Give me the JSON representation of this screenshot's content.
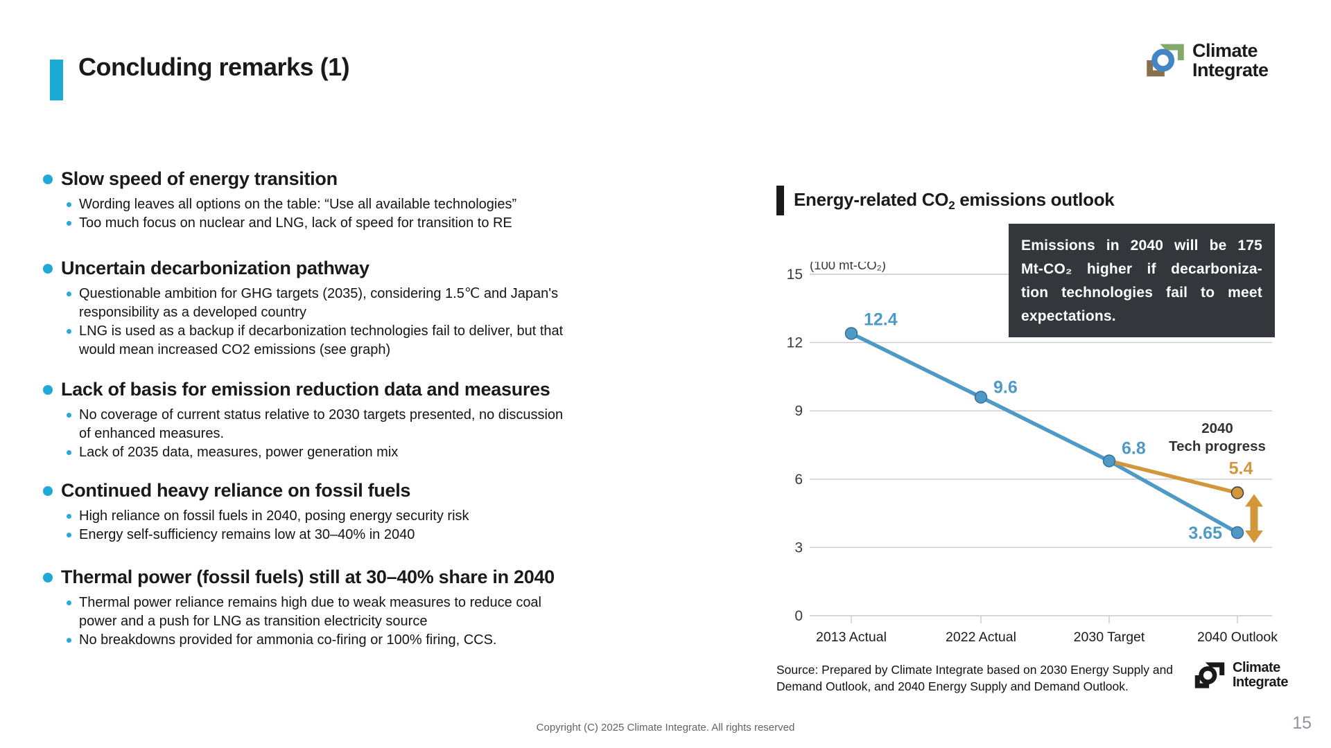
{
  "slide": {
    "title": "Concluding remarks (1)",
    "footer": "Copyright (C) 2025 Climate Integrate. All rights reserved",
    "page_number": "15",
    "accent_color": "#1fa8d8"
  },
  "logo": {
    "line1": "Climate",
    "line2": "Integrate"
  },
  "sections": [
    {
      "heading": "Slow speed of energy transition",
      "bullets": [
        "Wording leaves all options on the table: “Use all available technologies”",
        "Too much focus on nuclear and LNG, lack of speed for transition to RE"
      ]
    },
    {
      "heading": "Uncertain decarbonization pathway",
      "bullets": [
        "Questionable ambition for GHG targets (2035), considering 1.5℃ and Japan's responsibility as a developed country",
        "LNG is used as a backup if decarbonization technologies fail to deliver, but that would mean increased CO2 emissions (see graph)"
      ]
    },
    {
      "heading": "Lack of basis for emission reduction data and measures",
      "bullets": [
        "No coverage of current status relative to 2030 targets presented, no discussion of enhanced measures.",
        "Lack of 2035 data, measures, power generation mix"
      ]
    },
    {
      "heading": "Continued heavy reliance on fossil fuels",
      "bullets": [
        "High reliance on fossil fuels in 2040, posing energy security risk",
        "Energy self-sufficiency remains low at 30–40% in 2040"
      ]
    },
    {
      "heading": "Thermal power (fossil fuels) still at 30–40% share in 2040",
      "bullets": [
        "Thermal power reliance remains high due to weak measures to reduce coal power and a push for LNG as transition electricity source",
        "No breakdowns provided for ammonia co-firing or 100% firing, CCS."
      ]
    }
  ],
  "chart": {
    "header": {
      "pre": "Energy-related CO",
      "sub": "2",
      "post": " emissions outlook"
    },
    "callout_lines": [
      "Emissions in 2040 will be 175",
      "Mt-CO₂ higher if decarboniza-",
      "tion technologies fail to meet",
      "expectations."
    ],
    "source_lines": [
      "Source: Prepared by Climate Integrate based on 2030 Energy Supply and",
      "Demand Outlook, and 2040 Energy Supply and Demand Outlook."
    ]
  },
  "chart_data": {
    "type": "line",
    "title": "Energy-related CO2 emissions outlook",
    "unit_label": "(100 mt-CO₂)",
    "categories": [
      "2013 Actual",
      "2022 Actual",
      "2030 Target",
      "2040 Outlook"
    ],
    "series": [
      {
        "name": "Emissions outlook",
        "color": "#4e9ac6",
        "values": [
          12.4,
          9.6,
          6.8,
          3.65
        ],
        "labels": [
          "12.4",
          "9.6",
          "6.8",
          "3.65"
        ]
      },
      {
        "name": "2040 Tech progress",
        "color": "#d2973b",
        "values": [
          null,
          null,
          6.8,
          5.4
        ],
        "labels": [
          null,
          null,
          null,
          "5.4"
        ]
      }
    ],
    "annotation": {
      "line1": "2040",
      "line2": "Tech progress",
      "gap_note": "175 Mt-CO2 gap between 5.4 and 3.65 in 2040"
    },
    "ylim": [
      0,
      15
    ],
    "yticks": [
      0,
      3,
      6,
      9,
      12,
      15
    ],
    "grid": true,
    "legend": "none"
  }
}
